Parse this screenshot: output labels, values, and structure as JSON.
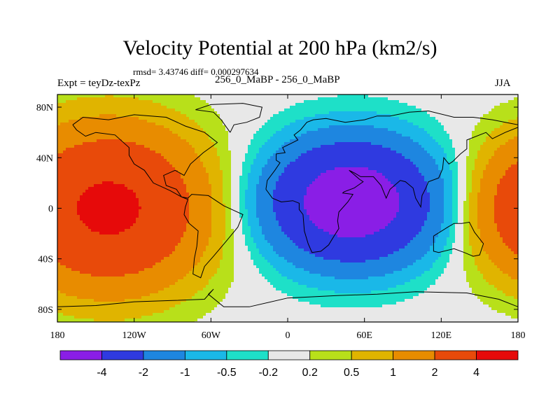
{
  "header": {
    "title": "Velocity Potential at 200 hPa (km2/s)",
    "stats": "rmsd= 3.43746 diff= 0.000297634",
    "left_label": "Expt = teyDz-texPz",
    "center_label": "256_0_MaBP - 256_0_MaBP",
    "right_label": "JJA"
  },
  "chart_data": {
    "type": "heatmap",
    "title": "Velocity Potential at 200 hPa (km2/s)",
    "xlabel": "",
    "ylabel": "",
    "x_ticks": [
      {
        "value": -180,
        "label": "180"
      },
      {
        "value": -120,
        "label": "120W"
      },
      {
        "value": -60,
        "label": "60W"
      },
      {
        "value": 0,
        "label": "0"
      },
      {
        "value": 60,
        "label": "60E"
      },
      {
        "value": 120,
        "label": "120E"
      },
      {
        "value": 180,
        "label": "180"
      }
    ],
    "y_ticks": [
      {
        "value": 80,
        "label": "80N"
      },
      {
        "value": 40,
        "label": "40N"
      },
      {
        "value": 0,
        "label": "0"
      },
      {
        "value": -40,
        "label": "40S"
      },
      {
        "value": -80,
        "label": "80S"
      }
    ],
    "xlim": [
      -180,
      180
    ],
    "ylim": [
      -90,
      90
    ],
    "levels": [
      -4,
      -2,
      -1,
      -0.5,
      -0.2,
      0.2,
      0.5,
      1,
      2,
      4
    ],
    "level_labels": [
      "-4",
      "-2",
      "-1",
      "-0.5",
      "-0.2",
      "0.2",
      "0.5",
      "1",
      "2",
      "4"
    ],
    "colors": [
      "#8a1ee6",
      "#2f3ae0",
      "#1e86e0",
      "#1ab8e8",
      "#1ee0c8",
      "#e8e8e8",
      "#b8e01a",
      "#e0b400",
      "#e88c00",
      "#e84a0a",
      "#e60a0a"
    ],
    "centers": [
      {
        "lon": 50,
        "lat": 5,
        "amp": -5.8,
        "sx": 62,
        "sy": 46
      },
      {
        "lon": -140,
        "lat": 0,
        "amp": 4.5,
        "sx": 72,
        "sy": 60
      },
      {
        "lon": 205,
        "lat": 0,
        "amp": 4.2,
        "sx": 55,
        "sy": 52
      }
    ]
  }
}
